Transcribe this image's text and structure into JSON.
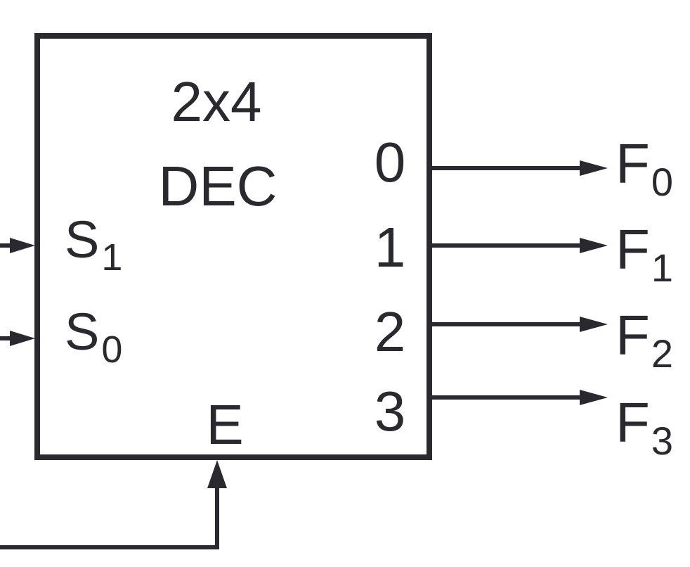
{
  "decoder": {
    "title_line1": "2x4",
    "title_line2": "DEC",
    "enable_label": "E",
    "inputs": [
      {
        "base": "S",
        "sub": "1"
      },
      {
        "base": "S",
        "sub": "0"
      }
    ],
    "outputs": [
      {
        "pin": "0",
        "base": "F",
        "sub": "0"
      },
      {
        "pin": "1",
        "base": "F",
        "sub": "1"
      },
      {
        "pin": "2",
        "base": "F",
        "sub": "2"
      },
      {
        "pin": "3",
        "base": "F",
        "sub": "3"
      }
    ]
  },
  "colors": {
    "stroke": "#2b2930",
    "background": "#ffffff"
  }
}
